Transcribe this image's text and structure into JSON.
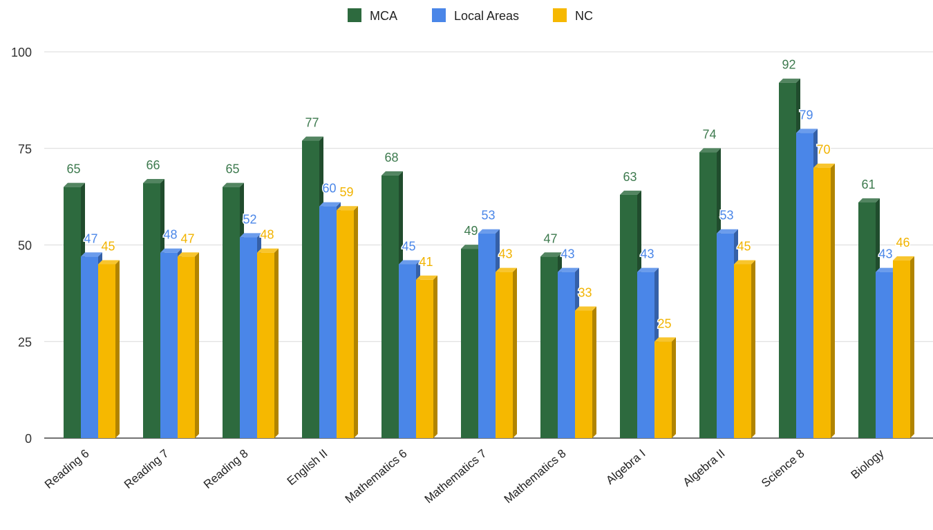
{
  "chart_data": {
    "type": "bar",
    "style": "3d-clustered-column",
    "categories": [
      "Reading 6",
      "Reading 7",
      "Reading 8",
      "English II",
      "Mathematics 6",
      "Mathematics 7",
      "Mathematics 8",
      "Algebra I",
      "Algebra II",
      "Science 8",
      "Biology"
    ],
    "series": [
      {
        "name": "MCA",
        "color": "#2d6a3e",
        "label_color": "#3d7a4e",
        "values": [
          65,
          66,
          65,
          77,
          68,
          49,
          47,
          63,
          74,
          92,
          61
        ]
      },
      {
        "name": "Local Areas",
        "color": "#4a86e8",
        "label_color": "#4a86e8",
        "values": [
          47,
          48,
          52,
          60,
          45,
          53,
          43,
          43,
          53,
          79,
          43
        ]
      },
      {
        "name": "NC",
        "color": "#f6b800",
        "label_color": "#f1b300",
        "values": [
          45,
          47,
          48,
          59,
          41,
          43,
          33,
          25,
          45,
          70,
          46
        ]
      }
    ],
    "yticks": [
      0,
      25,
      50,
      75,
      100
    ],
    "ylim": [
      0,
      100
    ],
    "title": "",
    "xlabel": "",
    "ylabel": "",
    "grid": true,
    "legend_position": "top-center"
  }
}
